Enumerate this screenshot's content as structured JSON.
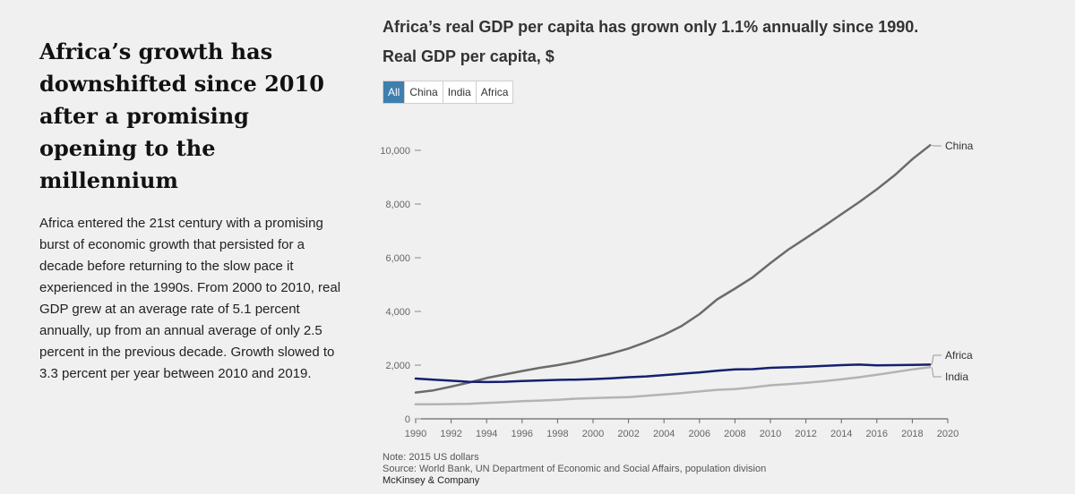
{
  "article": {
    "headline": "Africa’s growth has downshifted since 2010 after a promising opening to the millennium",
    "body": "Africa entered the 21st century with a promising burst of economic growth that persisted for a decade before returning to the slow pace it experienced in the 1990s. From 2000 to 2010, real GDP grew at an average rate of 5.1 percent annually, up from an annual average of only 2.5 percent in the previous decade. Growth slowed to 3.3 percent per year between 2010 and 2019."
  },
  "filters": [
    {
      "label": "All",
      "active": true
    },
    {
      "label": "China",
      "active": false
    },
    {
      "label": "India",
      "active": false
    },
    {
      "label": "Africa",
      "active": false
    }
  ],
  "footer": {
    "note": "Note: 2015 US dollars",
    "source": "Source: World Bank, UN Department of Economic and Social Affairs, population division",
    "brand": "McKinsey & Company"
  },
  "chart_data": {
    "type": "line",
    "title": "Africa’s real GDP per capita has grown only 1.1% annually since 1990.",
    "subtitle": "Real GDP per capita, $",
    "xlim": [
      1990,
      2020
    ],
    "ylim": [
      0,
      11000
    ],
    "xticks": [
      1990,
      1992,
      1994,
      1996,
      1998,
      2000,
      2002,
      2004,
      2006,
      2008,
      2010,
      2012,
      2014,
      2016,
      2018,
      2020
    ],
    "yticks": [
      0,
      2000,
      4000,
      6000,
      8000,
      10000
    ],
    "ytick_labels": [
      "0",
      "2,000",
      "4,000",
      "6,000",
      "8,000",
      "10,000"
    ],
    "grid": false,
    "legend": "direct-labels-right",
    "x": [
      1990,
      1991,
      1992,
      1993,
      1994,
      1995,
      1996,
      1997,
      1998,
      1999,
      2000,
      2001,
      2002,
      2003,
      2004,
      2005,
      2006,
      2007,
      2008,
      2009,
      2010,
      2011,
      2012,
      2013,
      2014,
      2015,
      2016,
      2017,
      2018,
      2019
    ],
    "series": [
      {
        "name": "China",
        "color": "#6b6b6b",
        "values": [
          980,
          1060,
          1200,
          1350,
          1520,
          1650,
          1780,
          1900,
          2000,
          2120,
          2270,
          2430,
          2620,
          2860,
          3130,
          3460,
          3900,
          4450,
          4850,
          5270,
          5800,
          6300,
          6730,
          7170,
          7620,
          8070,
          8550,
          9070,
          9670,
          10190
        ]
      },
      {
        "name": "Africa",
        "color": "#14206e",
        "values": [
          1500,
          1460,
          1420,
          1380,
          1370,
          1380,
          1410,
          1430,
          1450,
          1460,
          1480,
          1510,
          1550,
          1580,
          1630,
          1680,
          1730,
          1790,
          1840,
          1850,
          1900,
          1920,
          1940,
          1970,
          2000,
          2020,
          1990,
          2000,
          2010,
          2020
        ]
      },
      {
        "name": "India",
        "color": "#b3b3b3",
        "values": [
          540,
          540,
          550,
          560,
          590,
          620,
          660,
          680,
          710,
          750,
          770,
          790,
          810,
          860,
          910,
          960,
          1020,
          1080,
          1110,
          1170,
          1250,
          1290,
          1340,
          1400,
          1470,
          1550,
          1640,
          1740,
          1840,
          1920
        ]
      }
    ]
  }
}
